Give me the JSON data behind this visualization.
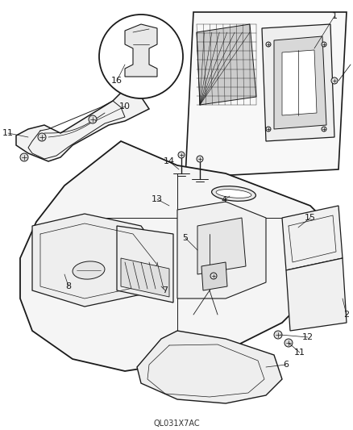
{
  "background_color": "#ffffff",
  "line_color": "#1a1a1a",
  "fig_width": 4.39,
  "fig_height": 5.33,
  "dpi": 100,
  "footer_text": "QL031X7AC",
  "footer_fontsize": 7
}
